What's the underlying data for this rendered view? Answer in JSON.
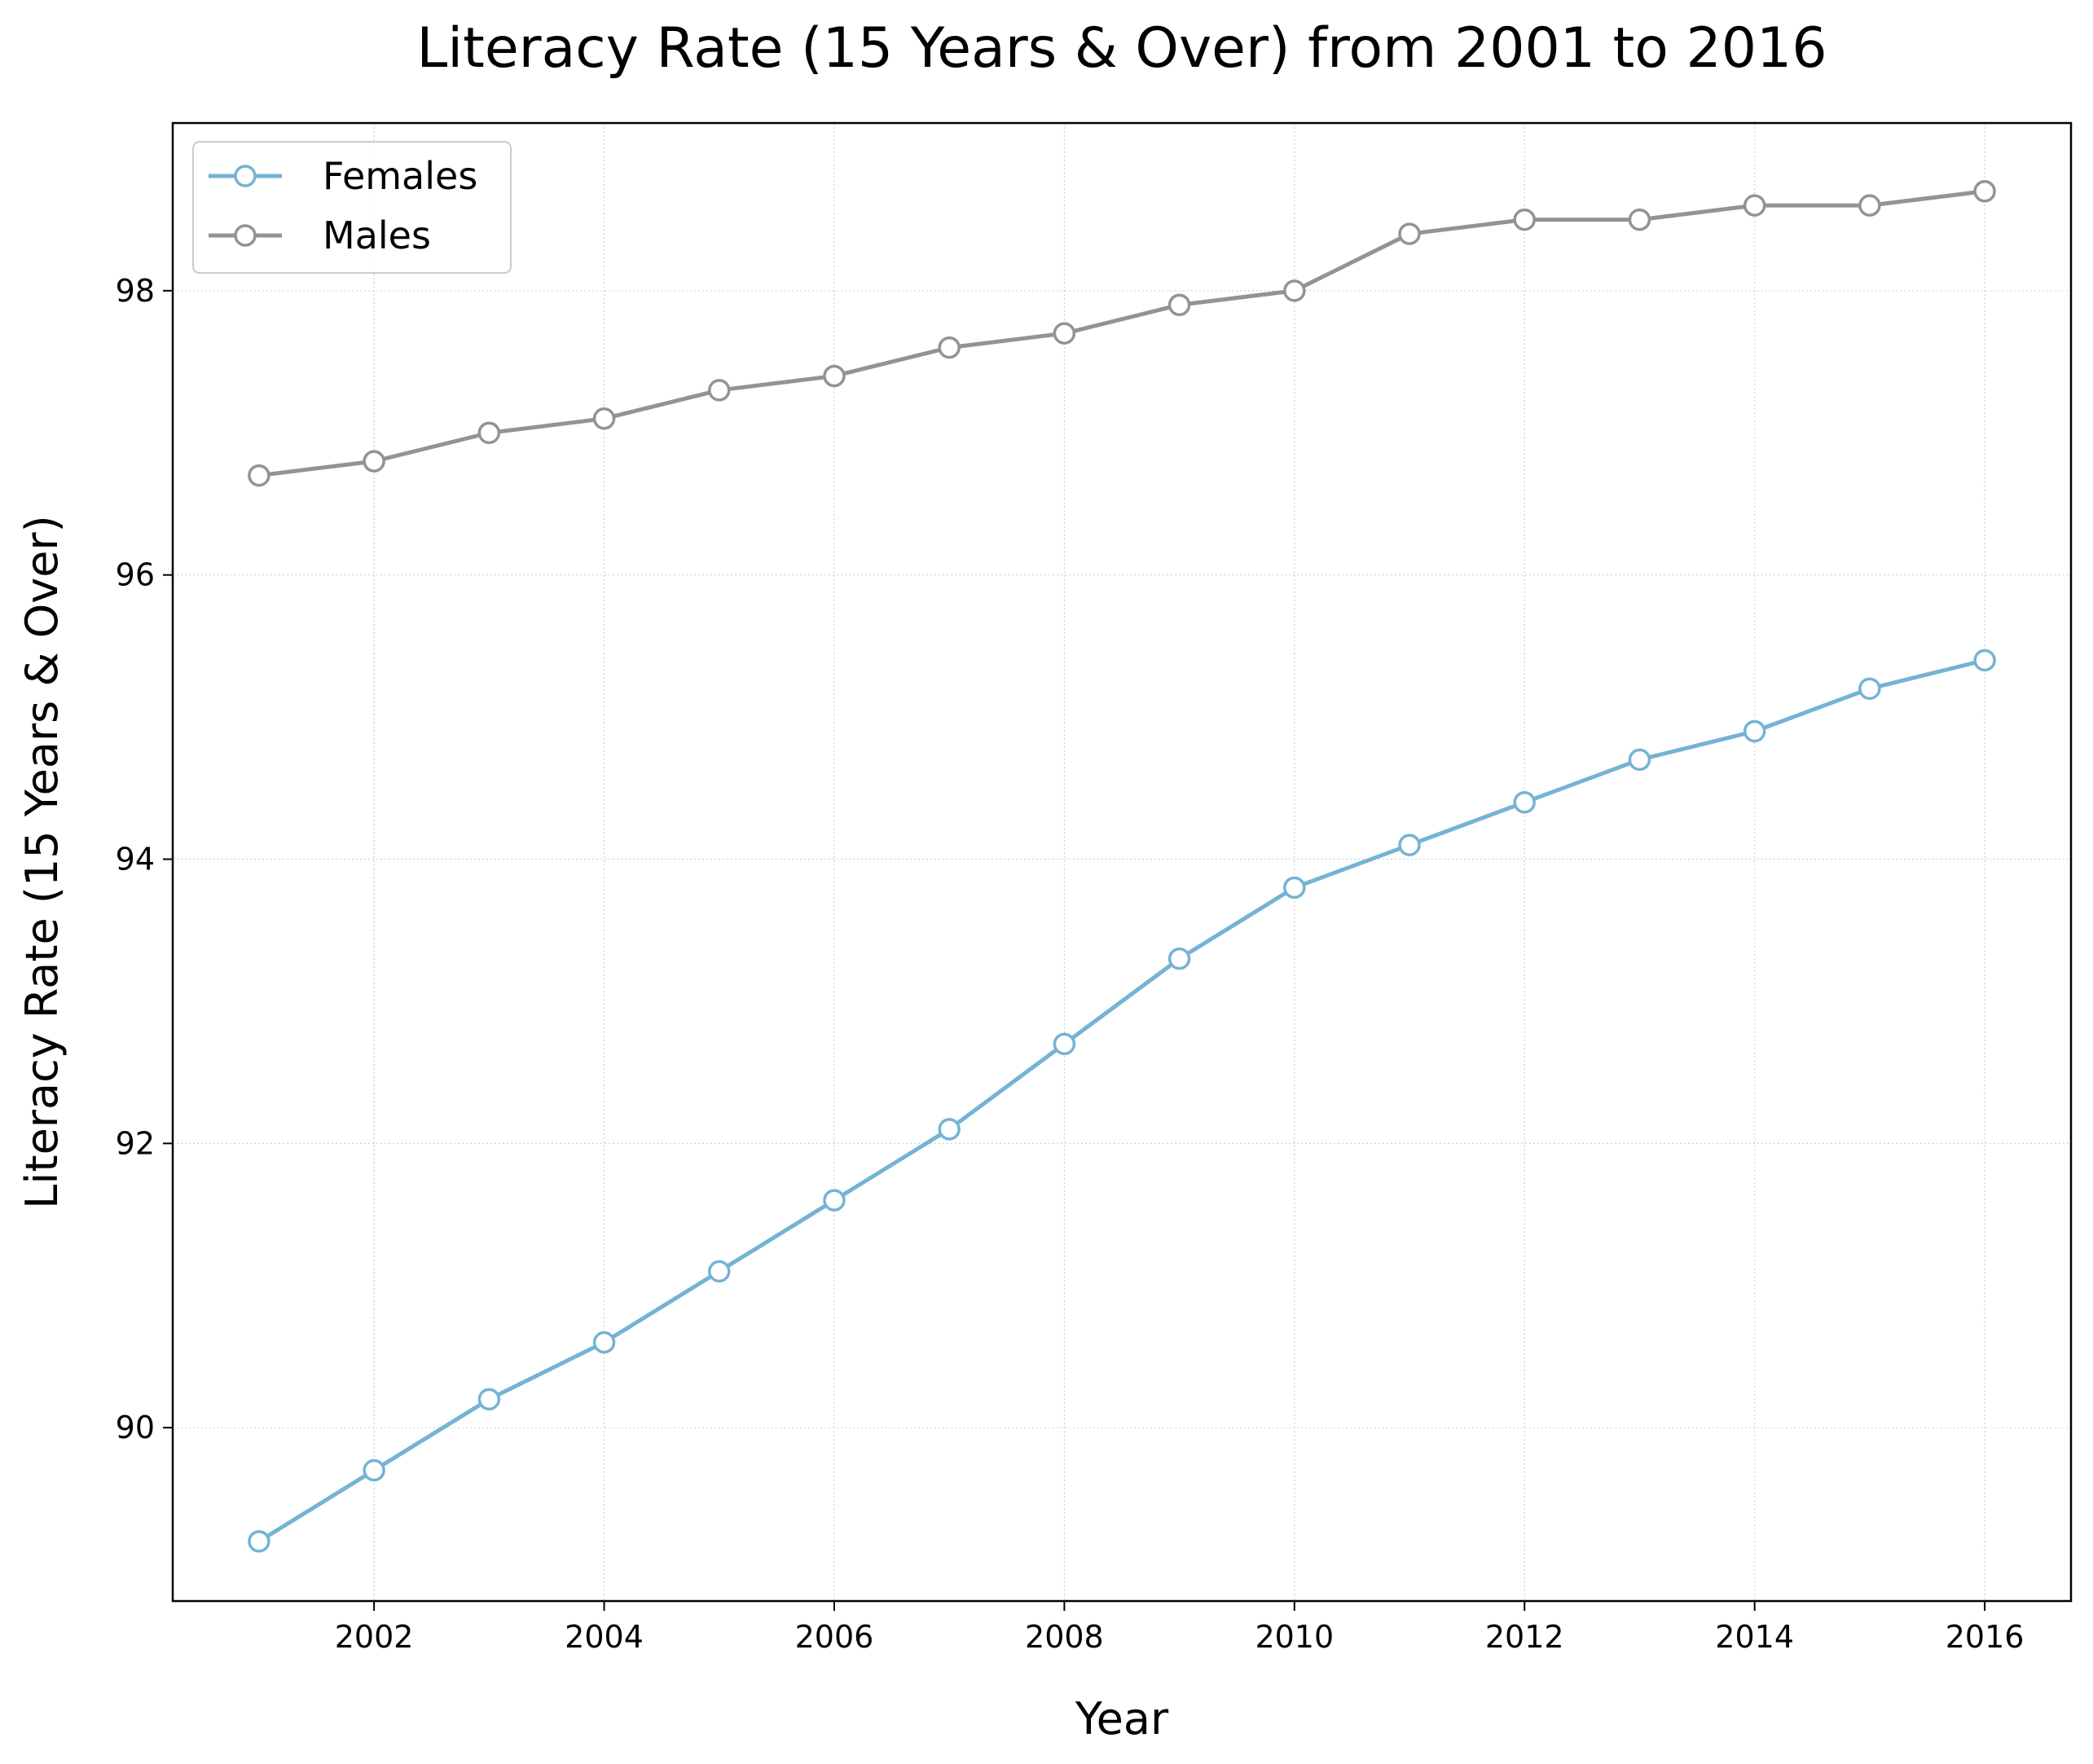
{
  "chart_data": {
    "type": "line",
    "title": "Literacy Rate (15 Years & Over) from 2001 to 2016",
    "xlabel": "Year",
    "ylabel": "Literacy Rate (15 Years & Over)",
    "x": [
      2001,
      2002,
      2003,
      2004,
      2005,
      2006,
      2007,
      2008,
      2009,
      2010,
      2011,
      2012,
      2013,
      2014,
      2015,
      2016
    ],
    "xlim": [
      2000.25,
      2016.75
    ],
    "ylim": [
      88.78,
      99.18
    ],
    "xticks": [
      2002,
      2004,
      2006,
      2008,
      2010,
      2012,
      2014,
      2016
    ],
    "yticks": [
      90,
      92,
      94,
      96,
      98
    ],
    "grid": true,
    "legend_position": "upper-left",
    "series": [
      {
        "name": "Females",
        "color": "#74b3d4",
        "marker": "open-circle",
        "values": [
          89.2,
          89.7,
          90.2,
          90.6,
          91.1,
          91.6,
          92.1,
          92.7,
          93.3,
          93.8,
          94.1,
          94.4,
          94.7,
          94.9,
          95.2,
          95.4
        ]
      },
      {
        "name": "Males",
        "color": "#939393",
        "marker": "open-circle",
        "values": [
          96.7,
          96.8,
          97.0,
          97.1,
          97.3,
          97.4,
          97.6,
          97.7,
          97.9,
          98.0,
          98.4,
          98.5,
          98.5,
          98.6,
          98.6,
          98.7
        ]
      }
    ]
  }
}
